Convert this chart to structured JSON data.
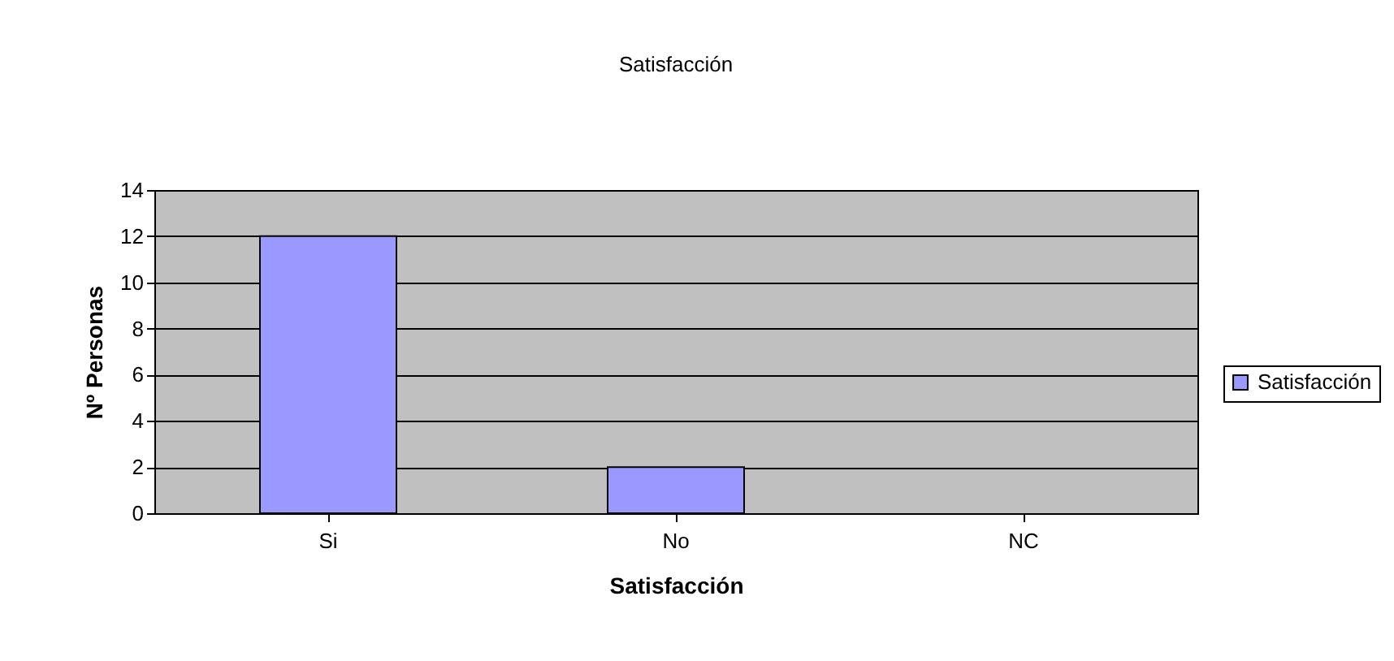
{
  "chart_data": {
    "type": "bar",
    "title": "Satisfacción",
    "xlabel": "Satisfacción",
    "ylabel": "Nº Personas",
    "categories": [
      "Si",
      "No",
      "NC"
    ],
    "series": [
      {
        "name": "Satisfacción",
        "color": "#9999ff",
        "values": [
          12,
          2,
          0
        ]
      }
    ],
    "ylim": [
      0,
      14
    ],
    "yticks": [
      0,
      2,
      4,
      6,
      8,
      10,
      12,
      14
    ],
    "grid": "y",
    "legend": "right"
  }
}
